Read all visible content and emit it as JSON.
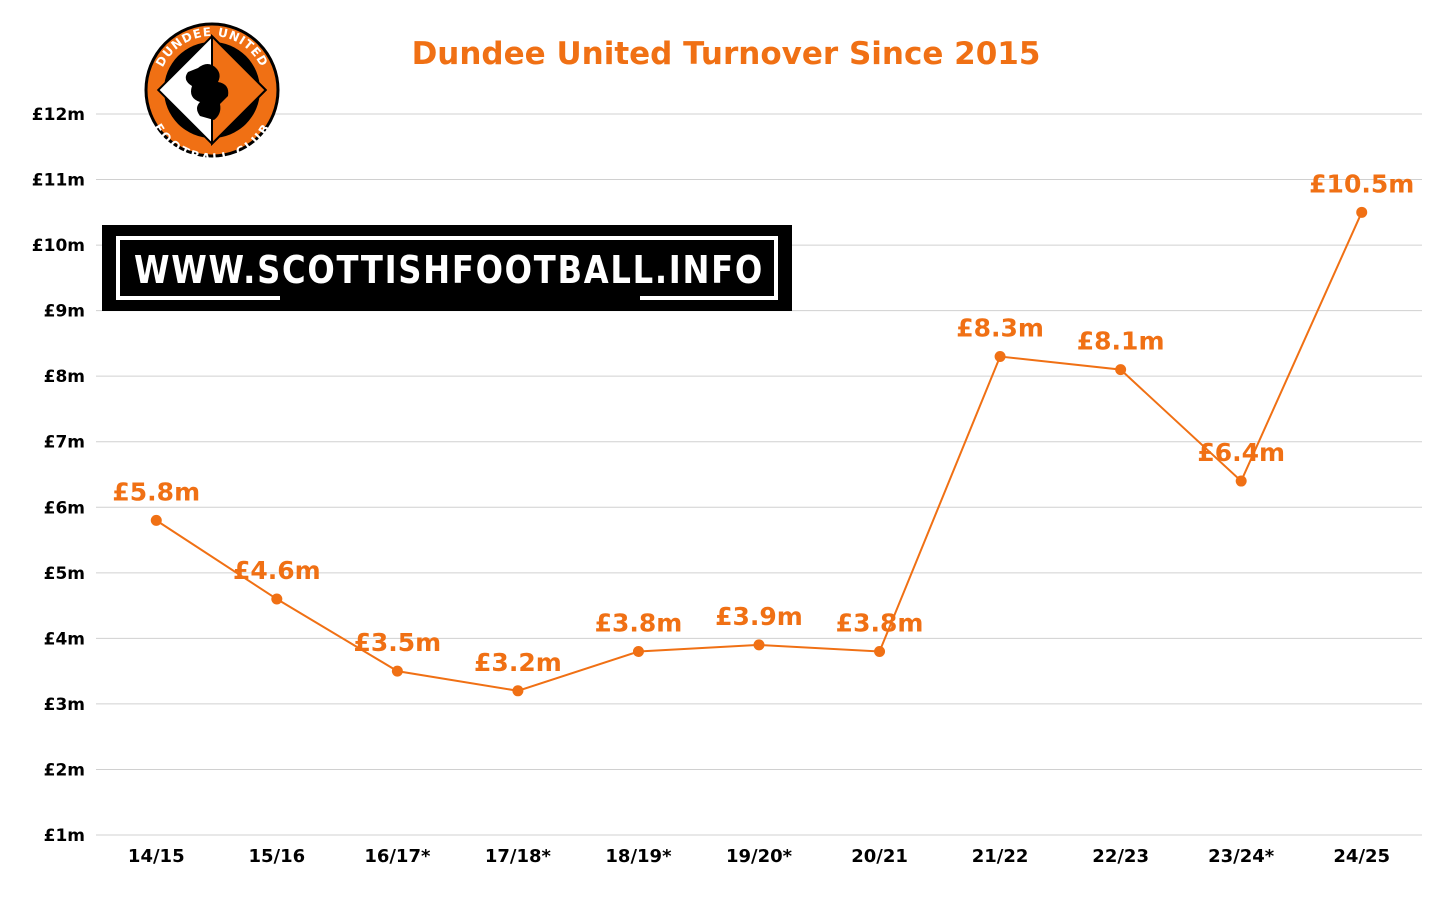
{
  "chart_data": {
    "type": "line",
    "title": "Dundee United Turnover Since 2015",
    "categories": [
      "14/15",
      "15/16",
      "16/17*",
      "17/18*",
      "18/19*",
      "19/20*",
      "20/21",
      "21/22",
      "22/23",
      "23/24*",
      "24/25"
    ],
    "values": [
      5.8,
      4.6,
      3.5,
      3.2,
      3.8,
      3.9,
      3.8,
      8.3,
      8.1,
      6.4,
      10.5
    ],
    "data_labels": [
      "£5.8m",
      "£4.6m",
      "£3.5m",
      "£3.2m",
      "£3.8m",
      "£3.9m",
      "£3.8m",
      "£8.3m",
      "£8.1m",
      "£6.4m",
      "£10.5m"
    ],
    "y_ticks": [
      1,
      2,
      3,
      4,
      5,
      6,
      7,
      8,
      9,
      10,
      11,
      12
    ],
    "y_tick_labels": [
      "£1m",
      "£2m",
      "£3m",
      "£4m",
      "£5m",
      "£6m",
      "£7m",
      "£8m",
      "£9m",
      "£10m",
      "£11m",
      "£12m"
    ],
    "ylim": [
      1,
      12
    ],
    "grid": true,
    "line_color": "#f07014",
    "legend": "none"
  },
  "logo": {
    "text_top": "DUNDEE UNITED",
    "text_bottom": "FOOTBALL CLUB",
    "primary_color": "#f07014",
    "secondary_color": "#000000"
  },
  "banner": {
    "text": "WWW.SCOTTISHFOOTBALL.INFO"
  }
}
